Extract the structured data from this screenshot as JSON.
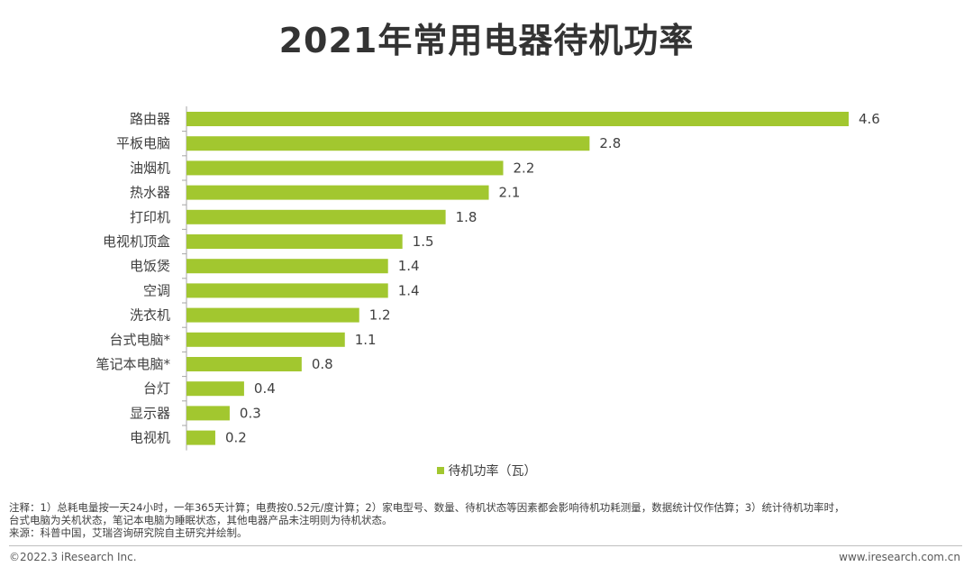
{
  "header": {
    "title": "2021年常用电器待机功率"
  },
  "chart_data": {
    "type": "bar",
    "orientation": "horizontal",
    "title": "2021年常用电器待机功率",
    "xlabel": "",
    "ylabel": "",
    "xlim": [
      0,
      4.6
    ],
    "grid": false,
    "legend_position": "bottom-center",
    "categories": [
      "路由器",
      "平板电脑",
      "油烟机",
      "热水器",
      "打印机",
      "电视机顶盒",
      "电饭煲",
      "空调",
      "洗衣机",
      "台式电脑*",
      "笔记本电脑*",
      "台灯",
      "显示器",
      "电视机"
    ],
    "series": [
      {
        "name": "待机功率（瓦）",
        "color": "#a2c72f",
        "values": [
          4.6,
          2.8,
          2.2,
          2.1,
          1.8,
          1.5,
          1.4,
          1.4,
          1.2,
          1.1,
          0.8,
          0.4,
          0.3,
          0.2
        ]
      }
    ]
  },
  "legend": {
    "label": "待机功率（瓦）"
  },
  "notes": {
    "line1": "注释：1）总耗电量按一天24小时，一年365天计算；电费按0.52元/度计算；2）家电型号、数量、待机状态等因素都会影响待机功耗测量，数据统计仅作估算；3）统计待机功率时，",
    "line2": "台式电脑为关机状态，笔记本电脑为睡眠状态，其他电器产品未注明则为待机状态。",
    "source": "来源：科普中国，艾瑞咨询研究院自主研究并绘制。"
  },
  "footer": {
    "copyright": "©2022.3 iResearch Inc.",
    "url": "www.iresearch.com.cn"
  }
}
